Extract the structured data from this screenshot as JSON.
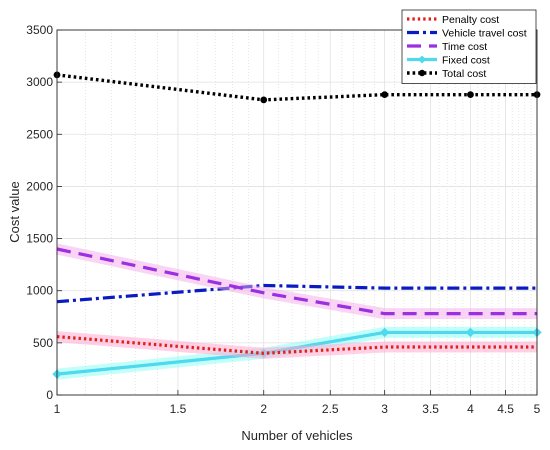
{
  "chart_data": {
    "type": "line",
    "xlabel": "Number of vehicles",
    "ylabel": "Cost value",
    "x": [
      1,
      2,
      3,
      4,
      5
    ],
    "xscale": "log",
    "xlim": [
      1,
      5
    ],
    "ylim": [
      0,
      3500
    ],
    "xticks": [
      1,
      1.5,
      2,
      2.5,
      3,
      3.5,
      4,
      4.5,
      5
    ],
    "xtick_labels": [
      "1",
      "1.5",
      "2",
      "2.5",
      "3",
      "3.5",
      "4",
      "4.5",
      "5"
    ],
    "yticks": [
      0,
      500,
      1000,
      1500,
      2000,
      2500,
      3000,
      3500
    ],
    "ytick_labels": [
      "0",
      "500",
      "1000",
      "1500",
      "2000",
      "2500",
      "3000",
      "3500"
    ],
    "grid": true,
    "legend_position": "top-right",
    "series": [
      {
        "name": "Penalty cost",
        "values": [
          560,
          400,
          460,
          460,
          460
        ],
        "color": "#e0201b",
        "style": "dotted"
      },
      {
        "name": "Vehicle travel cost",
        "values": [
          895,
          1050,
          1025,
          1025,
          1025
        ],
        "color": "#0a1cc0",
        "style": "dashdot"
      },
      {
        "name": "Time cost",
        "values": [
          1400,
          980,
          780,
          780,
          780
        ],
        "color": "#9b30e0",
        "style": "dashed"
      },
      {
        "name": "Fixed cost",
        "values": [
          200,
          400,
          600,
          600,
          600
        ],
        "color": "#4fd8ee",
        "style": "solid-diamond"
      },
      {
        "name": "Total cost",
        "values": [
          3070,
          2830,
          2880,
          2880,
          2880
        ],
        "color": "#000000",
        "style": "dotted-circle"
      }
    ]
  }
}
